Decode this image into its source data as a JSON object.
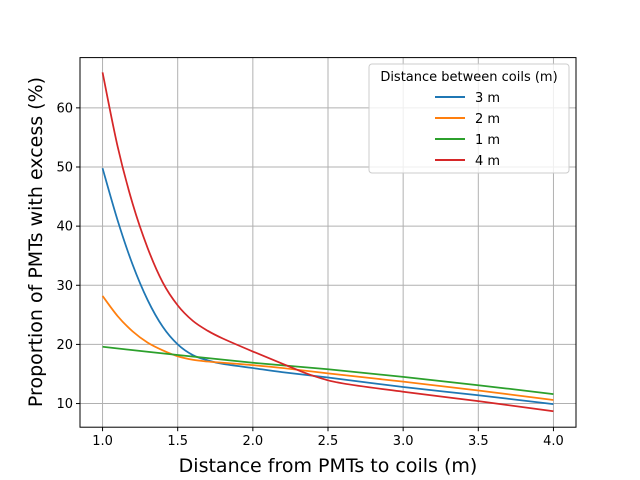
{
  "chart_data": {
    "type": "line",
    "xlabel": "Distance from PMTs to coils (m)",
    "ylabel": "Proportion of PMTs with excess (%)",
    "xlim": [
      0.85,
      4.15
    ],
    "ylim": [
      6.0,
      68.5
    ],
    "xticks": [
      "1.0",
      "1.5",
      "2.0",
      "2.5",
      "3.0",
      "3.5",
      "4.0"
    ],
    "yticks": [
      "10",
      "20",
      "30",
      "40",
      "50",
      "60"
    ],
    "grid": true,
    "legend": {
      "title": "Distance between coils (m)",
      "placement": "top-right"
    },
    "series": [
      {
        "name": "3 m",
        "color": "#1f77b4",
        "x": [
          1.0,
          1.1,
          1.2,
          1.3,
          1.4,
          1.5,
          1.6,
          1.7,
          1.8,
          2.0,
          2.2,
          2.5,
          3.0,
          3.5,
          4.0
        ],
        "y": [
          49.8,
          41.0,
          33.5,
          27.5,
          23.0,
          20.0,
          18.2,
          17.3,
          16.7,
          16.0,
          15.3,
          14.4,
          12.8,
          11.4,
          9.9
        ]
      },
      {
        "name": "2 m",
        "color": "#ff7f0e",
        "x": [
          1.0,
          1.1,
          1.2,
          1.3,
          1.4,
          1.5,
          1.6,
          1.7,
          1.8,
          2.0,
          2.2,
          2.5,
          3.0,
          3.5,
          4.0
        ],
        "y": [
          28.2,
          24.8,
          22.2,
          20.3,
          19.0,
          18.0,
          17.4,
          17.1,
          16.9,
          16.5,
          16.0,
          15.1,
          13.7,
          12.2,
          10.6
        ]
      },
      {
        "name": "1 m",
        "color": "#2ca02c",
        "x": [
          1.0,
          1.5,
          2.0,
          2.5,
          3.0,
          3.5,
          4.0
        ],
        "y": [
          19.6,
          18.2,
          16.9,
          15.8,
          14.5,
          13.1,
          11.6
        ]
      },
      {
        "name": "4 m",
        "color": "#d62728",
        "x": [
          1.0,
          1.1,
          1.2,
          1.3,
          1.4,
          1.5,
          1.6,
          1.7,
          1.8,
          2.0,
          2.2,
          2.4,
          2.6,
          3.0,
          3.5,
          4.0
        ],
        "y": [
          66.0,
          53.5,
          43.8,
          36.3,
          30.5,
          26.6,
          24.0,
          22.3,
          21.0,
          18.8,
          16.7,
          14.7,
          13.4,
          12.0,
          10.4,
          8.7
        ]
      }
    ]
  }
}
